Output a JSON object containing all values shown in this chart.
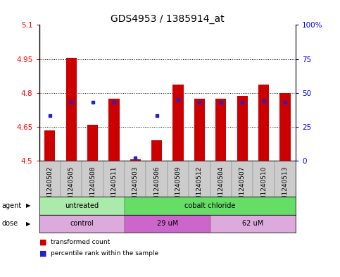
{
  "title": "GDS4953 / 1385914_at",
  "samples": [
    "GSM1240502",
    "GSM1240505",
    "GSM1240508",
    "GSM1240511",
    "GSM1240503",
    "GSM1240506",
    "GSM1240509",
    "GSM1240512",
    "GSM1240504",
    "GSM1240507",
    "GSM1240510",
    "GSM1240513"
  ],
  "bar_values": [
    4.635,
    4.955,
    4.66,
    4.775,
    4.505,
    4.59,
    4.835,
    4.775,
    4.775,
    4.785,
    4.835,
    4.8
  ],
  "percentile_values": [
    33,
    43,
    43,
    43,
    2,
    33,
    45,
    43,
    43,
    43,
    44,
    43
  ],
  "ymin": 4.5,
  "ymax": 5.1,
  "yticks": [
    4.5,
    4.65,
    4.8,
    4.95,
    5.1
  ],
  "ytick_labels": [
    "4.5",
    "4.65",
    "4.8",
    "4.95",
    "5.1"
  ],
  "y2ticks": [
    0,
    25,
    50,
    75,
    100
  ],
  "y2labels": [
    "0",
    "25",
    "50",
    "75",
    "100%"
  ],
  "bar_color": "#cc0000",
  "dot_color": "#2222cc",
  "agent_groups": [
    {
      "label": "untreated",
      "start": 0,
      "end": 4,
      "color": "#aaeaaa"
    },
    {
      "label": "cobalt chloride",
      "start": 4,
      "end": 12,
      "color": "#66dd66"
    }
  ],
  "dose_groups": [
    {
      "label": "control",
      "start": 0,
      "end": 4,
      "color": "#ddaadd"
    },
    {
      "label": "29 uM",
      "start": 4,
      "end": 8,
      "color": "#cc66cc"
    },
    {
      "label": "62 uM",
      "start": 8,
      "end": 12,
      "color": "#ddaadd"
    }
  ],
  "legend_items": [
    {
      "label": "transformed count",
      "color": "#cc0000"
    },
    {
      "label": "percentile rank within the sample",
      "color": "#2222cc"
    }
  ],
  "bar_width": 0.5,
  "label_fontsize": 6.5,
  "tick_fontsize": 7.5,
  "title_fontsize": 10,
  "sample_box_color": "#cccccc",
  "fig_bg": "#ffffff"
}
